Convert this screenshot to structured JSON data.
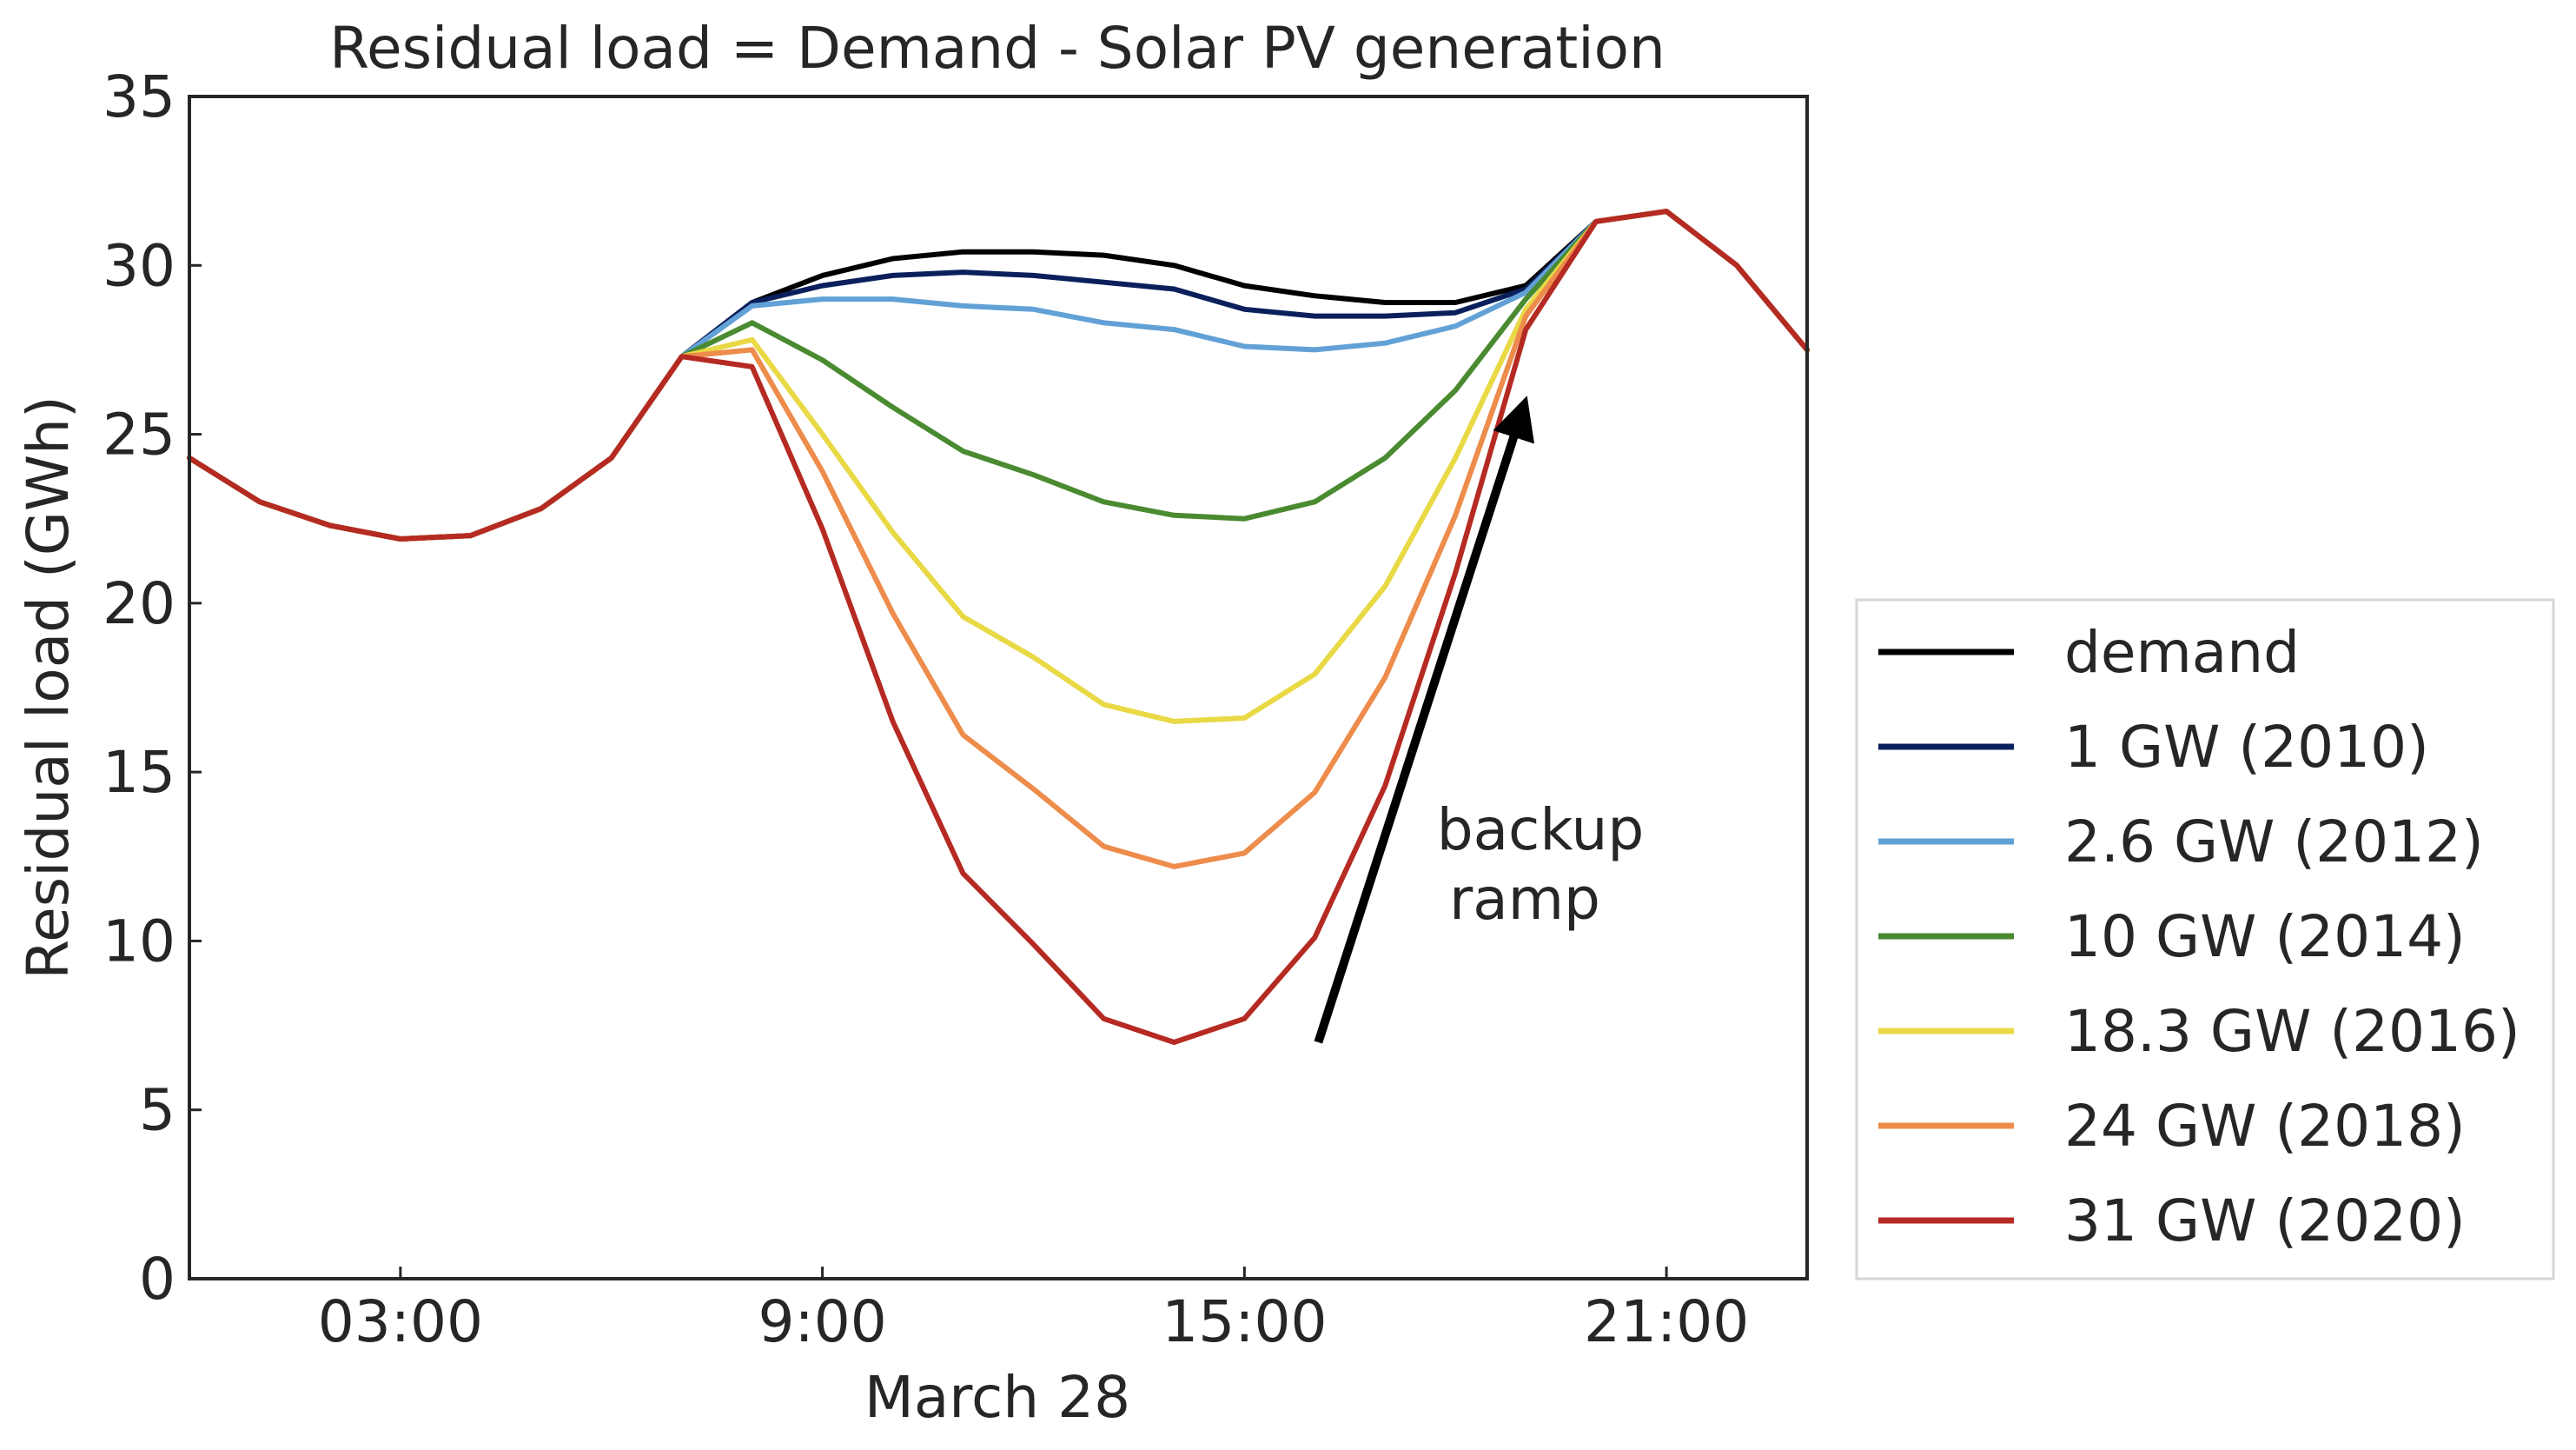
{
  "chart_data": {
    "type": "line",
    "title": "Residual load = Demand - Solar PV generation",
    "xlabel": "March 28",
    "ylabel": "Residual load (GWh)",
    "x_unit": "hour of day",
    "xlim": [
      0,
      23
    ],
    "ylim": [
      0,
      35
    ],
    "x_ticks": [
      {
        "value": 3,
        "label": "03:00"
      },
      {
        "value": 9,
        "label": "9:00"
      },
      {
        "value": 15,
        "label": "15:00"
      },
      {
        "value": 21,
        "label": "21:00"
      }
    ],
    "y_ticks": [
      0,
      5,
      10,
      15,
      20,
      25,
      30,
      35
    ],
    "grid": false,
    "legend_position": "outside-right-bottom",
    "x": [
      0,
      1,
      2,
      3,
      4,
      5,
      6,
      7,
      8,
      9,
      10,
      11,
      12,
      13,
      14,
      15,
      16,
      17,
      18,
      19,
      20,
      21,
      22,
      23
    ],
    "series": [
      {
        "name": "demand",
        "color": "#000000",
        "values": [
          24.3,
          23.0,
          22.3,
          21.9,
          22.0,
          22.8,
          24.3,
          27.3,
          28.9,
          29.7,
          30.2,
          30.4,
          30.4,
          30.3,
          30.0,
          29.4,
          29.1,
          28.9,
          28.9,
          29.4,
          31.3,
          31.6,
          30.0,
          27.5
        ]
      },
      {
        "name": "1 GW (2010)",
        "color": "#0a1f5c",
        "values": [
          24.3,
          23.0,
          22.3,
          21.9,
          22.0,
          22.8,
          24.3,
          27.3,
          28.9,
          29.4,
          29.7,
          29.8,
          29.7,
          29.5,
          29.3,
          28.7,
          28.5,
          28.5,
          28.6,
          29.3,
          31.3,
          31.6,
          30.0,
          27.5
        ]
      },
      {
        "name": "2.6 GW (2012)",
        "color": "#62a1d6",
        "values": [
          24.3,
          23.0,
          22.3,
          21.9,
          22.0,
          22.8,
          24.3,
          27.3,
          28.8,
          29.0,
          29.0,
          28.8,
          28.7,
          28.3,
          28.1,
          27.6,
          27.5,
          27.7,
          28.2,
          29.2,
          31.3,
          31.6,
          30.0,
          27.5
        ]
      },
      {
        "name": "10 GW (2014)",
        "color": "#4a8a30",
        "values": [
          24.3,
          23.0,
          22.3,
          21.9,
          22.0,
          22.8,
          24.3,
          27.3,
          28.3,
          27.2,
          25.8,
          24.5,
          23.8,
          23.0,
          22.6,
          22.5,
          23.0,
          24.3,
          26.3,
          29.0,
          31.3,
          31.6,
          30.0,
          27.5
        ]
      },
      {
        "name": "18.3 GW (2016)",
        "color": "#e8d945",
        "values": [
          24.3,
          23.0,
          22.3,
          21.9,
          22.0,
          22.8,
          24.3,
          27.3,
          27.8,
          25.0,
          22.1,
          19.6,
          18.4,
          17.0,
          16.5,
          16.6,
          17.9,
          20.5,
          24.3,
          28.7,
          31.3,
          31.6,
          30.0,
          27.5
        ]
      },
      {
        "name": "24 GW (2018)",
        "color": "#ed8c4b",
        "values": [
          24.3,
          23.0,
          22.3,
          21.9,
          22.0,
          22.8,
          24.3,
          27.3,
          27.5,
          23.9,
          19.7,
          16.1,
          14.5,
          12.8,
          12.2,
          12.6,
          14.4,
          17.8,
          22.6,
          28.5,
          31.3,
          31.6,
          30.0,
          27.5
        ]
      },
      {
        "name": "31 GW (2020)",
        "color": "#b52a22",
        "values": [
          24.3,
          23.0,
          22.3,
          21.9,
          22.0,
          22.8,
          24.3,
          27.3,
          27.0,
          22.2,
          16.5,
          12.0,
          9.9,
          7.7,
          7.0,
          7.7,
          10.1,
          14.6,
          20.9,
          28.1,
          31.3,
          31.6,
          30.0,
          27.5
        ]
      }
    ],
    "annotation": {
      "lines": [
        "backup",
        "ramp"
      ],
      "arrow_from": {
        "x": 16.05,
        "y": 7.0
      },
      "arrow_to": {
        "x": 18.95,
        "y": 25.7
      }
    }
  }
}
